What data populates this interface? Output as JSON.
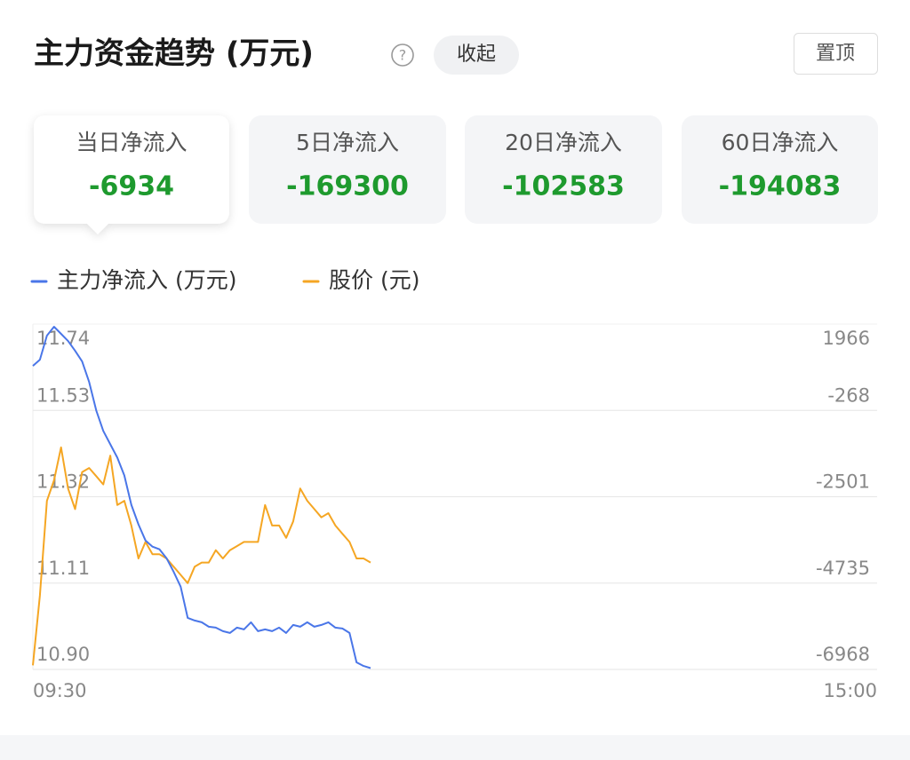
{
  "header": {
    "title": "主力资金趋势 (万元)",
    "collapse": "收起",
    "pin": "置顶"
  },
  "summary": [
    {
      "label": "当日净流入",
      "value": -6934
    },
    {
      "label": "5日净流入",
      "value": -169300
    },
    {
      "label": "20日净流入",
      "value": -102583
    },
    {
      "label": "60日净流入",
      "value": -194083
    }
  ],
  "chart_data": {
    "type": "line",
    "x": [
      "09:30",
      "09:32",
      "09:34",
      "09:36",
      "09:38",
      "09:40",
      "09:42",
      "09:44",
      "09:46",
      "09:48",
      "09:50",
      "09:52",
      "09:54",
      "09:56",
      "09:58",
      "10:00",
      "10:02",
      "10:04",
      "10:06",
      "10:08",
      "10:10",
      "10:12",
      "10:14",
      "10:16",
      "10:18",
      "10:20",
      "10:22",
      "10:24",
      "10:26",
      "10:28",
      "10:30",
      "10:32",
      "10:34",
      "10:36",
      "10:38",
      "10:40",
      "10:42",
      "10:44",
      "10:46",
      "10:48",
      "10:50",
      "10:52",
      "10:54",
      "10:56",
      "10:58",
      "11:00",
      "11:02",
      "11:04",
      "11:06"
    ],
    "series": [
      {
        "name": "主力净流入 (万元)",
        "color": "#4a76e8",
        "axis": "y2",
        "values": [
          884,
          1045,
          1667,
          1897,
          1713,
          1528,
          1275,
          999,
          469,
          -268,
          -798,
          -1143,
          -1489,
          -1949,
          -2709,
          -3216,
          -3630,
          -3792,
          -3861,
          -4091,
          -4436,
          -4828,
          -5634,
          -5703,
          -5749,
          -5864,
          -5887,
          -5979,
          -6025,
          -5887,
          -5933,
          -5749,
          -5979,
          -5933,
          -5979,
          -5887,
          -6025,
          -5818,
          -5864,
          -5749,
          -5864,
          -5818,
          -5749,
          -5887,
          -5910,
          -6025,
          -6785,
          -6878,
          -6934
        ]
      },
      {
        "name": "股价 (元)",
        "color": "#f5a623",
        "values": [
          10.91,
          11.08,
          11.31,
          11.36,
          11.44,
          11.34,
          11.29,
          11.38,
          11.39,
          11.37,
          11.35,
          11.42,
          11.3,
          11.31,
          11.25,
          11.17,
          11.21,
          11.18,
          11.18,
          11.17,
          11.15,
          11.13,
          11.11,
          11.15,
          11.16,
          11.16,
          11.19,
          11.17,
          11.19,
          11.2,
          11.21,
          11.21,
          11.21,
          11.3,
          11.25,
          11.25,
          11.22,
          11.26,
          11.34,
          11.31,
          11.29,
          11.27,
          11.28,
          11.25,
          11.23,
          11.21,
          11.17,
          11.17,
          11.16
        ]
      }
    ],
    "xlim": [
      "09:30",
      "15:00"
    ],
    "xticks": [
      "09:30",
      "15:00"
    ],
    "ylim": [
      10.9,
      11.74
    ],
    "yticks": [
      {
        "value": 10.9,
        "label": "10.90"
      },
      11.11,
      11.32,
      11.53,
      11.74
    ],
    "y2lim": [
      -6968,
      1966
    ],
    "y2ticks": [
      -6968,
      -4735,
      -2501,
      -268,
      1966
    ],
    "grid": true
  }
}
